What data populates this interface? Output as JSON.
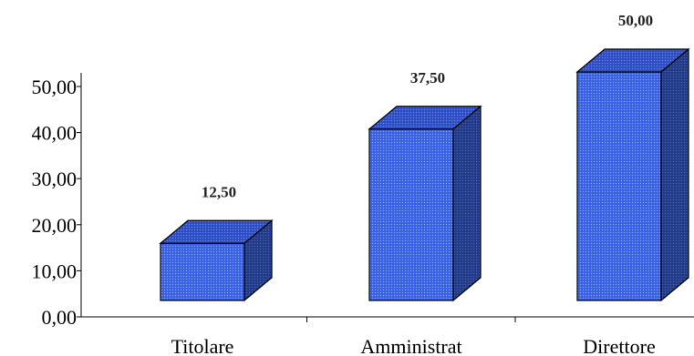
{
  "chart_data": {
    "type": "bar",
    "style": "3d",
    "categories": [
      "Titolare",
      "Amministrat",
      "Direttore"
    ],
    "values": [
      12.5,
      37.5,
      50.0
    ],
    "data_labels": [
      "12,50",
      "37,50",
      "50,00"
    ],
    "y_ticks": [
      0,
      10,
      20,
      30,
      40,
      50
    ],
    "y_tick_labels": [
      "0,00",
      "10,00",
      "20,00",
      "30,00",
      "40,00",
      "50,00"
    ],
    "ylim": [
      0,
      50
    ],
    "grid": false,
    "legend": "none",
    "colors": {
      "front": "#3f63e6",
      "top": "#2c4fbf",
      "side": "#243d8c",
      "edge": "#000000"
    }
  }
}
